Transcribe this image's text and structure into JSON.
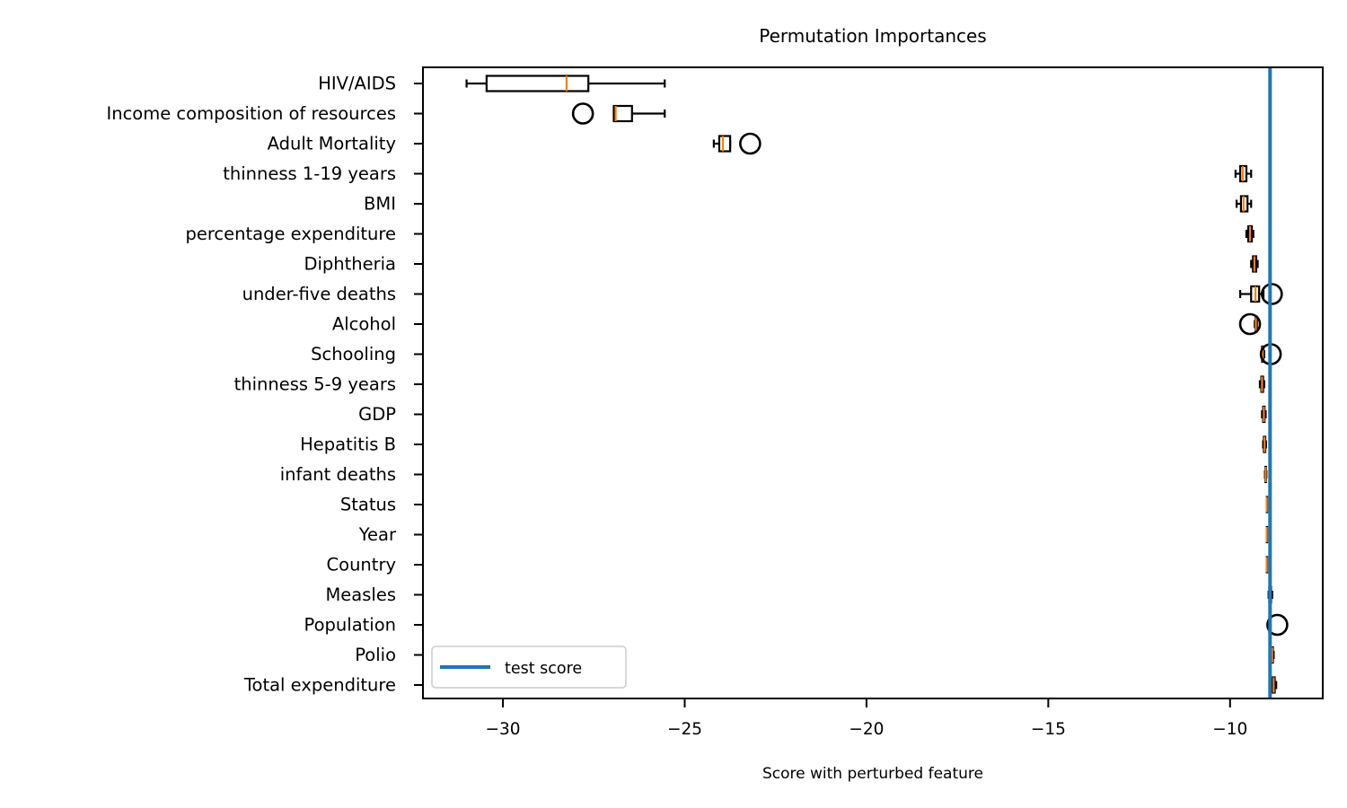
{
  "chart_data": {
    "type": "boxplot",
    "orientation": "horizontal",
    "title": "Permutation Importances",
    "xlabel": "Score with perturbed feature",
    "ylabel": "",
    "xlim": [
      -32.2,
      -7.45
    ],
    "xticks": [
      -30,
      -25,
      -20,
      -15,
      -10
    ],
    "xtick_labels": [
      "−30",
      "−25",
      "−20",
      "−15",
      "−10"
    ],
    "grid": false,
    "legend": {
      "position": "lower-left",
      "entries": [
        "test score"
      ]
    },
    "reference_line": {
      "label": "test score",
      "x": -8.9
    },
    "colors": {
      "box": "#000000",
      "median": "#ff7f0e",
      "test_line": "#1f77b4"
    },
    "features": [
      {
        "label": "HIV/AIDS",
        "whislo": -31.0,
        "q1": -30.45,
        "med": -28.25,
        "q3": -27.65,
        "whishi": -25.55,
        "fliers": []
      },
      {
        "label": "Income composition of resources",
        "whislo": -26.95,
        "q1": -26.95,
        "med": -26.9,
        "q3": -26.45,
        "whishi": -25.55,
        "fliers": [
          -27.8
        ]
      },
      {
        "label": "Adult Mortality",
        "whislo": -24.2,
        "q1": -24.05,
        "med": -23.95,
        "q3": -23.75,
        "whishi": -23.75,
        "fliers": [
          -23.2
        ]
      },
      {
        "label": "thinness  1-19 years",
        "whislo": -9.85,
        "q1": -9.72,
        "med": -9.65,
        "q3": -9.55,
        "whishi": -9.42,
        "fliers": []
      },
      {
        "label": "BMI ",
        "whislo": -9.82,
        "q1": -9.7,
        "med": -9.63,
        "q3": -9.52,
        "whishi": -9.42,
        "fliers": []
      },
      {
        "label": "percentage expenditure",
        "whislo": -9.55,
        "q1": -9.5,
        "med": -9.45,
        "q3": -9.4,
        "whishi": -9.36,
        "fliers": []
      },
      {
        "label": "Diphtheria ",
        "whislo": -9.42,
        "q1": -9.37,
        "med": -9.33,
        "q3": -9.28,
        "whishi": -9.24,
        "fliers": []
      },
      {
        "label": "under-five deaths ",
        "whislo": -9.72,
        "q1": -9.42,
        "med": -9.3,
        "q3": -9.2,
        "whishi": -9.08,
        "fliers": [
          -8.85
        ]
      },
      {
        "label": "Alcohol",
        "whislo": -9.32,
        "q1": -9.3,
        "med": -9.29,
        "q3": -9.27,
        "whishi": -9.26,
        "fliers": [
          -9.45
        ]
      },
      {
        "label": "Schooling",
        "whislo": -9.14,
        "q1": -9.12,
        "med": -9.1,
        "q3": -9.08,
        "whishi": -9.06,
        "fliers": [
          -8.88
        ]
      },
      {
        "label": "thinness 5-9 years",
        "whislo": -9.18,
        "q1": -9.14,
        "med": -9.12,
        "q3": -9.09,
        "whishi": -9.06,
        "fliers": []
      },
      {
        "label": "GDP",
        "whislo": -9.12,
        "q1": -9.09,
        "med": -9.07,
        "q3": -9.05,
        "whishi": -9.02,
        "fliers": []
      },
      {
        "label": "Hepatitis B",
        "whislo": -9.09,
        "q1": -9.07,
        "med": -9.05,
        "q3": -9.03,
        "whishi": -9.01,
        "fliers": []
      },
      {
        "label": "infant deaths",
        "whislo": -9.04,
        "q1": -9.03,
        "med": -9.02,
        "q3": -9.01,
        "whishi": -9.0,
        "fliers": []
      },
      {
        "label": "Status",
        "whislo": -8.99,
        "q1": -8.99,
        "med": -8.99,
        "q3": -8.99,
        "whishi": -8.99,
        "fliers": []
      },
      {
        "label": "Year",
        "whislo": -8.99,
        "q1": -8.99,
        "med": -8.99,
        "q3": -8.99,
        "whishi": -8.99,
        "fliers": []
      },
      {
        "label": "Country",
        "whislo": -8.99,
        "q1": -8.99,
        "med": -8.99,
        "q3": -8.99,
        "whishi": -8.99,
        "fliers": []
      },
      {
        "label": "Measles ",
        "whislo": -8.94,
        "q1": -8.92,
        "med": -8.9,
        "q3": -8.87,
        "whishi": -8.84,
        "fliers": []
      },
      {
        "label": "Population",
        "whislo": -8.95,
        "q1": -8.92,
        "med": -8.91,
        "q3": -8.9,
        "whishi": -8.89,
        "fliers": [
          -8.7
        ]
      },
      {
        "label": "Polio",
        "whislo": -8.88,
        "q1": -8.86,
        "med": -8.84,
        "q3": -8.82,
        "whishi": -8.8,
        "fliers": []
      },
      {
        "label": "Total expenditure",
        "whislo": -8.86,
        "q1": -8.83,
        "med": -8.8,
        "q3": -8.77,
        "whishi": -8.73,
        "fliers": []
      }
    ]
  }
}
